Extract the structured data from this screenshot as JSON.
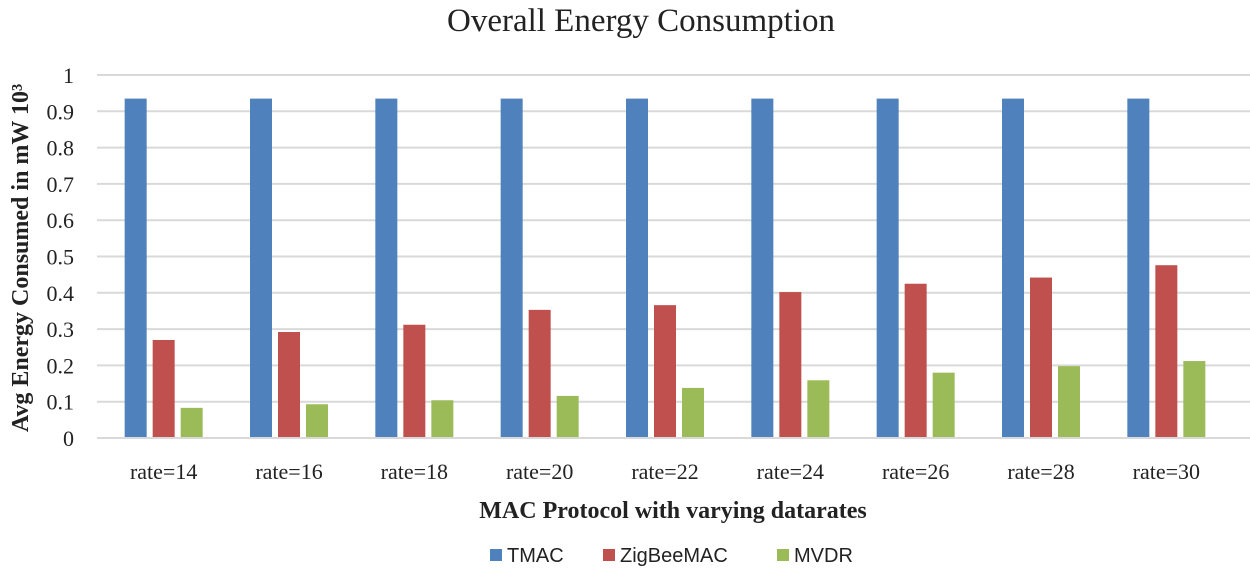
{
  "chart_data": {
    "type": "bar",
    "title": "Overall Energy Consumption",
    "xlabel": "MAC Protocol with varying datarates",
    "ylabel": "Avg  Energy Consumed in mW 10³",
    "ylim": [
      0,
      1
    ],
    "yticks": [
      "0",
      "0.1",
      "0.2",
      "0.3",
      "0.4",
      "0.5",
      "0.6",
      "0.7",
      "0.8",
      "0.9",
      "1"
    ],
    "grid": true,
    "legend_position": "bottom-center",
    "categories": [
      "rate=14",
      "rate=16",
      "rate=18",
      "rate=20",
      "rate=22",
      "rate=24",
      "rate=26",
      "rate=28",
      "rate=30"
    ],
    "series": [
      {
        "name": "TMAC",
        "color": "#4f81bd",
        "values": [
          0.935,
          0.935,
          0.935,
          0.935,
          0.935,
          0.935,
          0.935,
          0.935,
          0.935
        ]
      },
      {
        "name": "ZigBeeMAC",
        "color": "#c0504d",
        "values": [
          0.27,
          0.292,
          0.312,
          0.353,
          0.366,
          0.402,
          0.425,
          0.442,
          0.476
        ]
      },
      {
        "name": "MVDR",
        "color": "#9bbb59",
        "values": [
          0.083,
          0.093,
          0.104,
          0.116,
          0.138,
          0.159,
          0.18,
          0.198,
          0.212
        ]
      }
    ]
  }
}
